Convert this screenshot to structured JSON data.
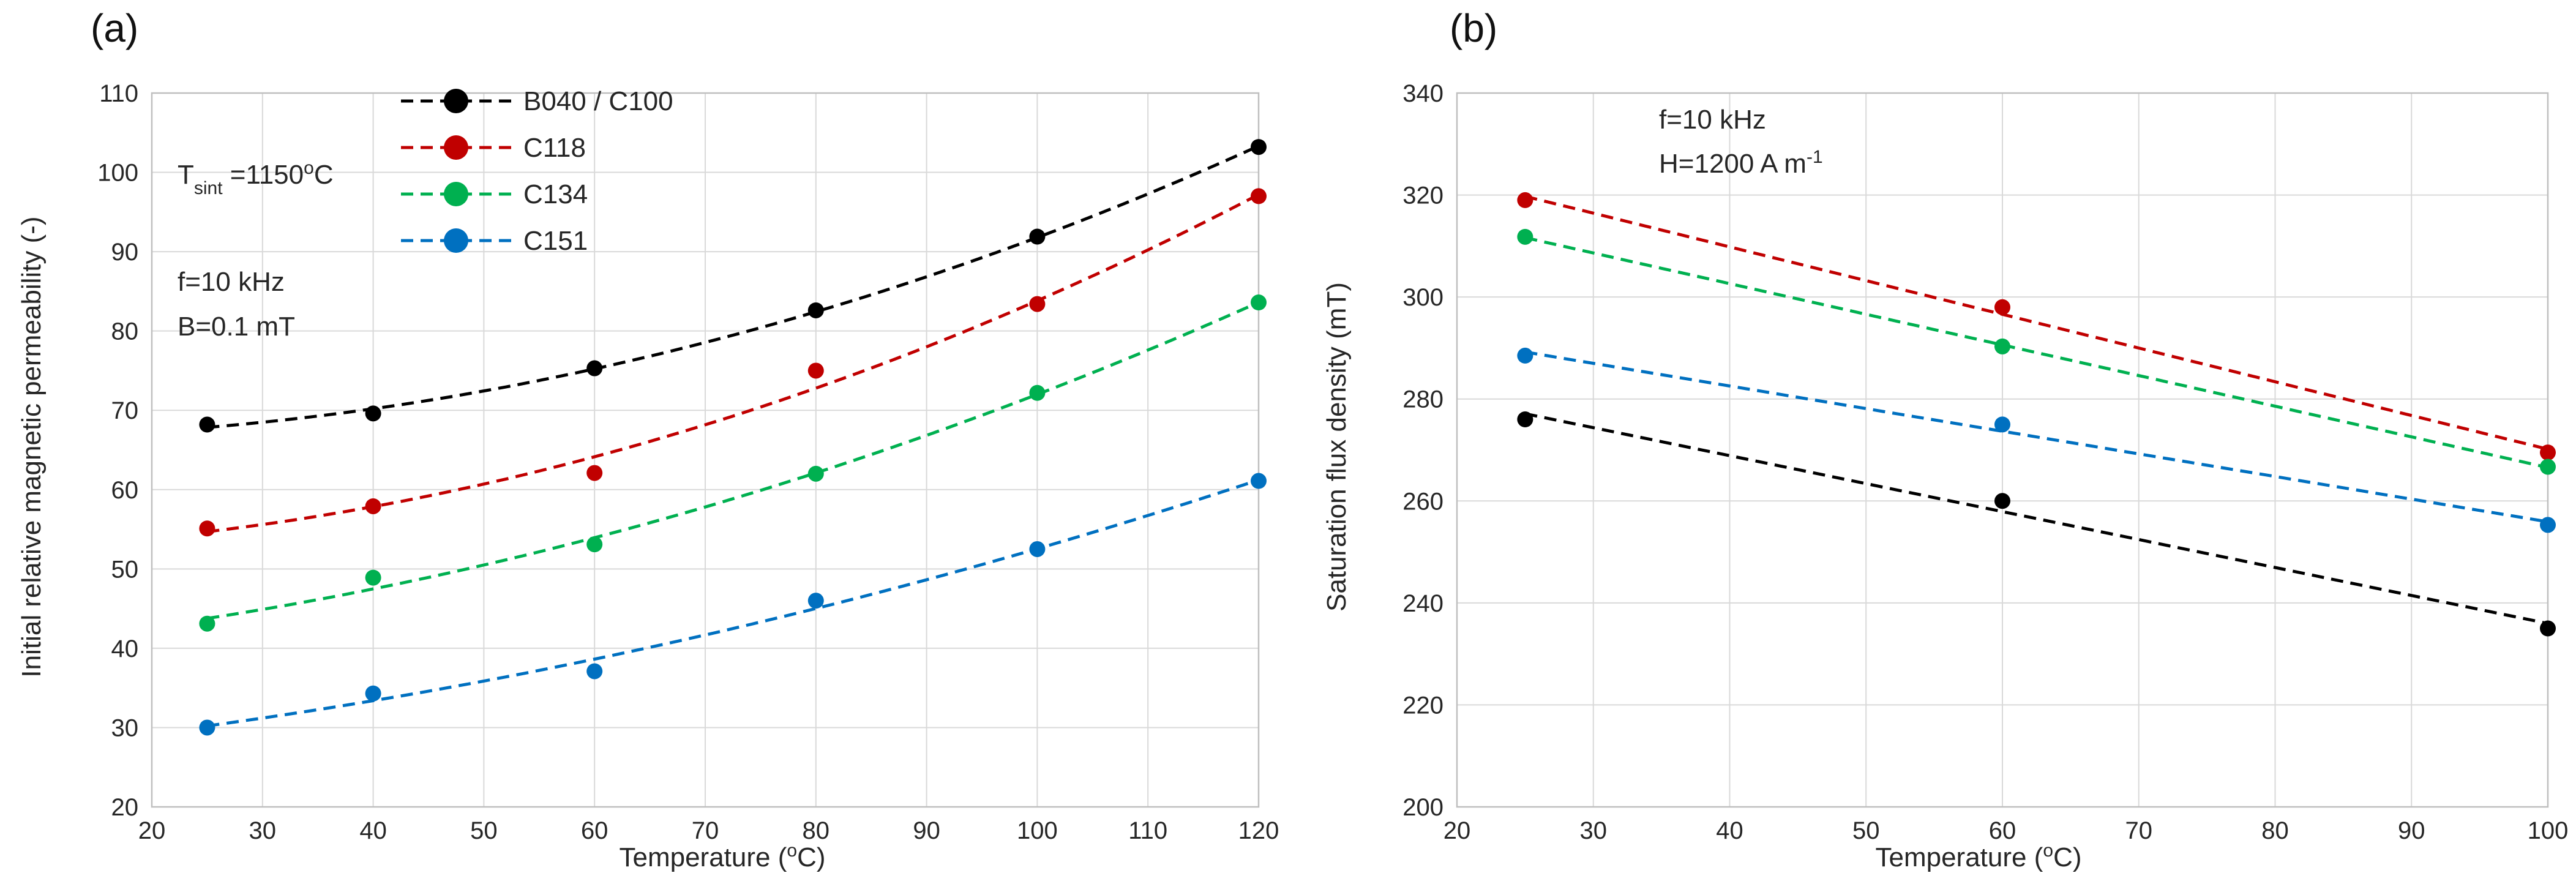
{
  "chart_data": [
    {
      "panel": "(a)",
      "type": "scatter",
      "fit": "polynomial-trendline",
      "xlabel": "Temperature (",
      "xlabel_sup": "o",
      "xlabel_end": "C)",
      "ylabel": "Initial relative magnetic permeability (-)",
      "xlim": [
        20,
        120
      ],
      "ylim": [
        20,
        110
      ],
      "xticks": [
        "20",
        "30",
        "40",
        "50",
        "60",
        "70",
        "80",
        "90",
        "100",
        "110",
        "120"
      ],
      "yticks": [
        "20",
        "30",
        "40",
        "50",
        "60",
        "70",
        "80",
        "90",
        "100",
        "110"
      ],
      "annotations": {
        "tsint_main": "T",
        "tsint_sub": "sint",
        "tsint_val": " =1150",
        "tsint_sup": "o",
        "tsint_unit": "C",
        "freq": "f=10 kHz",
        "field": "B=0.1 mT"
      },
      "x": [
        25,
        40,
        60,
        80,
        100,
        120
      ],
      "series": [
        {
          "name": "B040 / C100",
          "color": "#000000",
          "values": [
            68.2,
            69.6,
            75.3,
            82.6,
            91.9,
            103.2
          ]
        },
        {
          "name": "C118",
          "color": "#c00000",
          "values": [
            55.1,
            57.9,
            62.1,
            75.0,
            83.4,
            97.0
          ]
        },
        {
          "name": "C134",
          "color": "#00b050",
          "values": [
            43.1,
            48.9,
            53.1,
            62.0,
            72.2,
            83.6
          ]
        },
        {
          "name": "C151",
          "color": "#0070c0",
          "values": [
            30.0,
            34.3,
            37.1,
            46.0,
            52.5,
            61.1
          ]
        }
      ]
    },
    {
      "panel": "(b)",
      "type": "scatter",
      "fit": "linear-trendline",
      "xlabel": "Temperature (",
      "xlabel_sup": "o",
      "xlabel_end": "C)",
      "ylabel": "Saturation flux density (mT)",
      "xlim": [
        20,
        100
      ],
      "ylim": [
        200,
        340
      ],
      "xticks": [
        "20",
        "30",
        "40",
        "50",
        "60",
        "70",
        "80",
        "90",
        "100"
      ],
      "yticks": [
        "200",
        "220",
        "240",
        "260",
        "280",
        "300",
        "320",
        "340"
      ],
      "annotations": {
        "freq": "f=10 kHz",
        "field": "H=1200 A m",
        "field_sup": "-1"
      },
      "x": [
        25,
        60,
        100
      ],
      "series": [
        {
          "name": "B040 / C100",
          "color": "#000000",
          "values": [
            276,
            260,
            235
          ]
        },
        {
          "name": "C118",
          "color": "#c00000",
          "values": [
            319,
            298,
            269.5
          ]
        },
        {
          "name": "C134",
          "color": "#00b050",
          "values": [
            311.8,
            290.3,
            266.7
          ]
        },
        {
          "name": "C151",
          "color": "#0070c0",
          "values": [
            288.5,
            275,
            255.3
          ]
        }
      ]
    }
  ]
}
